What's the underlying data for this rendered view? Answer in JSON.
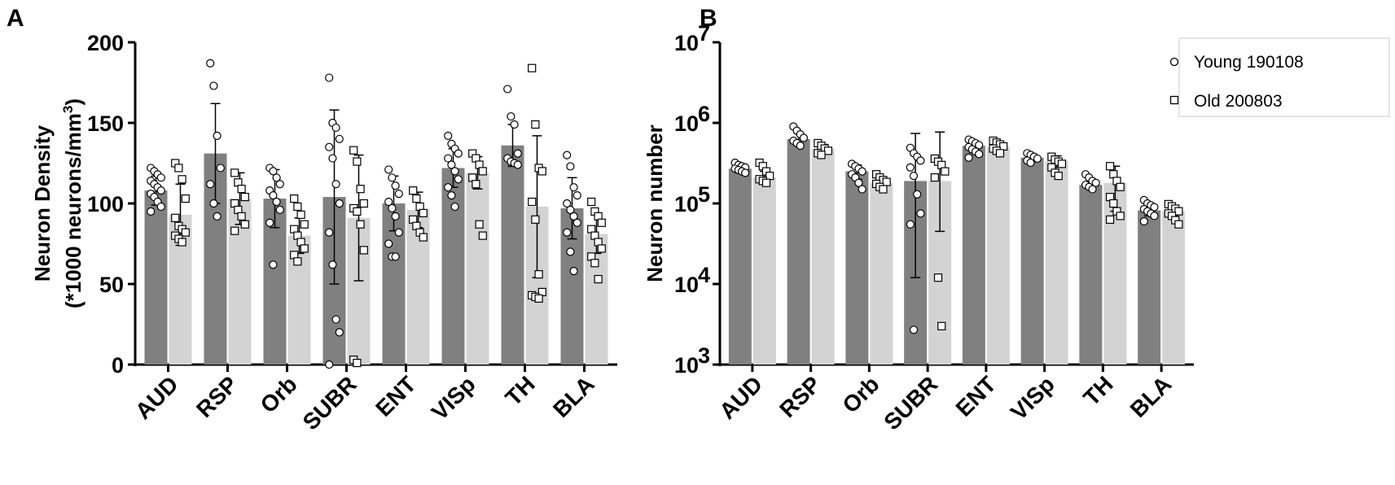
{
  "panels": {
    "a": {
      "label": "A"
    },
    "b": {
      "label": "B"
    }
  },
  "colors": {
    "young_bar": "#808080",
    "old_bar": "#d3d3d3",
    "axis": "#000000"
  },
  "chart_data": [
    {
      "id": "A",
      "type": "bar",
      "ylabel_line1": "Neuron Density",
      "ylabel_line2": "(*1000 neurons/mm",
      "ylabel_sup": "3",
      "ylabel_close": ")",
      "ylim": [
        0,
        200
      ],
      "yticks": [
        0,
        50,
        100,
        150,
        200
      ],
      "ytick_labels": [
        "0",
        "50",
        "100",
        "150",
        "200"
      ],
      "categories": [
        "AUD",
        "RSP",
        "Orb",
        "SUBR",
        "ENT",
        "VISp",
        "TH",
        "BLA"
      ],
      "series": [
        {
          "name": "Young 190108",
          "marker": "circle",
          "values": [
            108,
            131,
            103,
            104,
            100,
            122,
            136,
            97
          ],
          "errors": [
            9,
            31,
            18,
            54,
            17,
            12,
            13,
            19
          ],
          "points": [
            [
              122,
              120,
              118,
              116,
              114,
              112,
              110,
              108,
              106,
              104,
              101,
              98,
              95
            ],
            [
              187,
              173,
              142,
              122,
              112,
              100,
              92
            ],
            [
              122,
              120,
              116,
              112,
              108,
              105,
              101,
              96,
              88,
              62
            ],
            [
              178,
              150,
              147,
              140,
              135,
              128,
              112,
              100,
              82,
              62,
              28,
              20,
              0
            ],
            [
              121,
              116,
              111,
              106,
              101,
              97,
              92,
              82,
              75,
              67,
              67
            ],
            [
              142,
              137,
              134,
              131,
              128,
              124,
              120,
              115,
              110,
              105,
              98
            ],
            [
              171,
              154,
              149,
              131,
              128,
              126,
              125,
              124
            ],
            [
              130,
              123,
              110,
              105,
              100,
              96,
              92,
              88,
              82,
              70,
              58
            ]
          ]
        },
        {
          "name": "Old 200803",
          "marker": "square",
          "values": [
            93,
            103,
            80,
            91,
            96,
            119,
            98,
            81
          ],
          "errors": [
            19,
            16,
            11,
            39,
            11,
            10,
            44,
            12
          ],
          "points": [
            [
              125,
              122,
              115,
              103,
              91,
              86,
              84,
              82,
              80,
              78,
              76
            ],
            [
              119,
              113,
              109,
              104,
              100,
              96,
              92,
              87,
              83
            ],
            [
              103,
              98,
              93,
              87,
              84,
              80,
              76,
              72,
              68,
              64
            ],
            [
              133,
              126,
              109,
              100,
              97,
              95,
              87,
              71,
              3,
              1
            ],
            [
              108,
              103,
              98,
              94,
              90,
              86,
              82,
              79
            ],
            [
              131,
              128,
              124,
              120,
              116,
              112,
              87,
              80
            ],
            [
              184,
              149,
              122,
              120,
              101,
              90,
              56,
              45,
              43,
              42,
              41
            ],
            [
              101,
              95,
              92,
              88,
              84,
              80,
              76,
              72,
              67,
              63,
              53
            ]
          ]
        }
      ]
    },
    {
      "id": "B",
      "type": "bar",
      "yscale": "log",
      "ylabel": "Neuron number",
      "ylim": [
        1000,
        10000000
      ],
      "yticks": [
        1000,
        10000,
        100000,
        1000000,
        10000000
      ],
      "ytick_base": "10",
      "ytick_exponents": [
        "3",
        "4",
        "5",
        "6",
        "7"
      ],
      "categories": [
        "AUD",
        "RSP",
        "Orb",
        "SUBR",
        "ENT",
        "VISp",
        "TH",
        "BLA"
      ],
      "legend": {
        "position": "top-right",
        "entries": [
          "Young 190108",
          "Old 200803"
        ]
      },
      "series": [
        {
          "name": "Young 190108",
          "marker": "circle",
          "values": [
            270000,
            630000,
            250000,
            190000,
            520000,
            370000,
            170000,
            82000
          ],
          "err_low": [
            240000,
            520000,
            200000,
            12000,
            430000,
            330000,
            150000,
            70000
          ],
          "err_high": [
            300000,
            740000,
            300000,
            740000,
            600000,
            410000,
            200000,
            97000
          ],
          "points": [
            [
              320000,
              300000,
              290000,
              280000,
              270000,
              260000,
              250000,
              240000
            ],
            [
              900000,
              800000,
              720000,
              650000,
              600000,
              560000,
              520000
            ],
            [
              310000,
              290000,
              270000,
              250000,
              230000,
              210000,
              180000,
              150000
            ],
            [
              490000,
              420000,
              380000,
              340000,
              280000,
              220000,
              130000,
              75000,
              55000,
              2700
            ],
            [
              620000,
              590000,
              560000,
              530000,
              500000,
              470000,
              440000,
              410000,
              370000
            ],
            [
              420000,
              400000,
              380000,
              360000,
              340000,
              320000
            ],
            [
              230000,
              210000,
              190000,
              180000,
              170000,
              160000,
              150000
            ],
            [
              110000,
              100000,
              95000,
              90000,
              85000,
              80000,
              75000,
              70000,
              60000
            ]
          ]
        },
        {
          "name": "Old 200803",
          "marker": "square",
          "values": [
            210000,
            480000,
            180000,
            190000,
            500000,
            340000,
            180000,
            80000
          ],
          "err_low": [
            180000,
            420000,
            160000,
            45000,
            430000,
            280000,
            80000,
            70000
          ],
          "err_high": [
            250000,
            540000,
            210000,
            770000,
            580000,
            390000,
            290000,
            92000
          ],
          "points": [
            [
              320000,
              290000,
              250000,
              220000,
              200000,
              190000,
              180000
            ],
            [
              560000,
              520000,
              480000,
              450000,
              420000,
              400000
            ],
            [
              230000,
              210000,
              195000,
              185000,
              175000,
              160000,
              150000
            ],
            [
              360000,
              330000,
              300000,
              250000,
              210000,
              12000,
              3000
            ],
            [
              600000,
              570000,
              540000,
              510000,
              480000,
              450000,
              420000
            ],
            [
              380000,
              350000,
              330000,
              310000,
              280000,
              240000,
              220000
            ],
            [
              290000,
              230000,
              190000,
              160000,
              120000,
              100000,
              80000,
              70000,
              63000
            ],
            [
              98000,
              92000,
              86000,
              80000,
              75000,
              70000,
              62000,
              55000
            ]
          ]
        }
      ]
    }
  ]
}
